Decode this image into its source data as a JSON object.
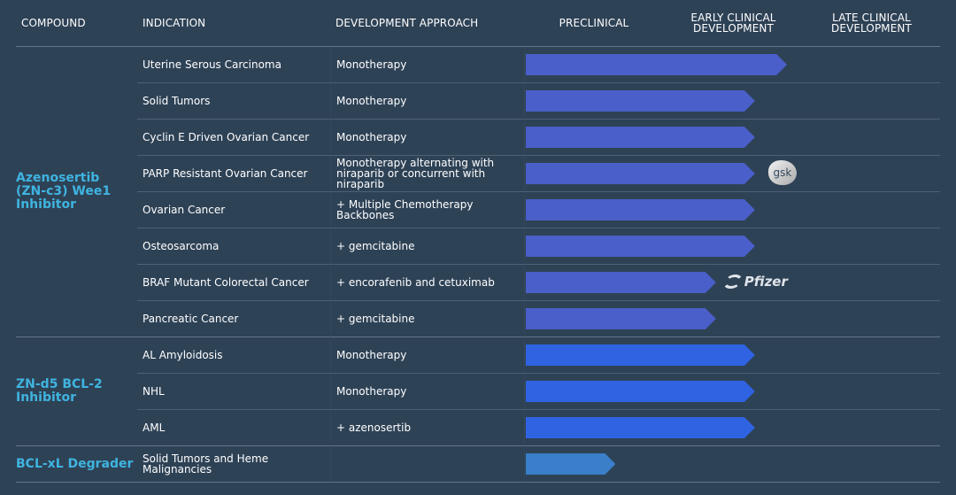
{
  "headers": {
    "compound": "COMPOUND",
    "indication": "INDICATION",
    "approach": "DEVELOPMENT APPROACH",
    "preclinical": "PRECLINICAL",
    "early": "EARLY CLINICAL DEVELOPMENT",
    "late": "LATE CLINICAL DEVELOPMENT"
  },
  "phase_scale": "progress in phases: 0=start of Preclinical, 1=start of Early Clinical, 2=start of Late Clinical, 3=end",
  "colors": {
    "azenosertib": "#4a5fc9",
    "zn_d5": "#2f63e2",
    "bcl_xl": "#3a7fc9",
    "compound_text": "#3fb4e0",
    "background": "#2e4256"
  },
  "groups": [
    {
      "compound": "Azenosertib (ZN-c3) Wee1 Inhibitor",
      "color_key": "azenosertib",
      "rows": [
        {
          "indication": "Uterine Serous Carcinoma",
          "approach": "Monotherapy",
          "progress": 1.88
        },
        {
          "indication": "Solid Tumors",
          "approach": "Monotherapy",
          "progress": 1.65
        },
        {
          "indication": "Cyclin E Driven Ovarian Cancer",
          "approach": "Monotherapy",
          "progress": 1.65
        },
        {
          "indication": "PARP Resistant Ovarian Cancer",
          "approach": "Monotherapy alternating with niraparib or concurrent with niraparib",
          "progress": 1.65,
          "partner": "gsk"
        },
        {
          "indication": "Ovarian Cancer",
          "approach": "+ Multiple Chemotherapy Backbones",
          "progress": 1.65
        },
        {
          "indication": "Osteosarcoma",
          "approach": "+ gemcitabine",
          "progress": 1.65
        },
        {
          "indication": "BRAF Mutant Colorectal Cancer",
          "approach": "+ encorafenib and cetuximab",
          "progress": 1.37,
          "partner": "Pfizer"
        },
        {
          "indication": "Pancreatic Cancer",
          "approach": "+ gemcitabine",
          "progress": 1.37
        }
      ]
    },
    {
      "compound": "ZN-d5 BCL-2 Inhibitor",
      "color_key": "zn_d5",
      "rows": [
        {
          "indication": "AL Amyloidosis",
          "approach": "Monotherapy",
          "progress": 1.65
        },
        {
          "indication": "NHL",
          "approach": "Monotherapy",
          "progress": 1.65
        },
        {
          "indication": "AML",
          "approach": "+ azenosertib",
          "progress": 1.65
        }
      ]
    },
    {
      "compound": "BCL-xL Degrader",
      "color_key": "bcl_xl",
      "rows": [
        {
          "indication": "Solid Tumors and Heme Malignancies",
          "approach": "",
          "progress": 0.65
        }
      ]
    }
  ]
}
